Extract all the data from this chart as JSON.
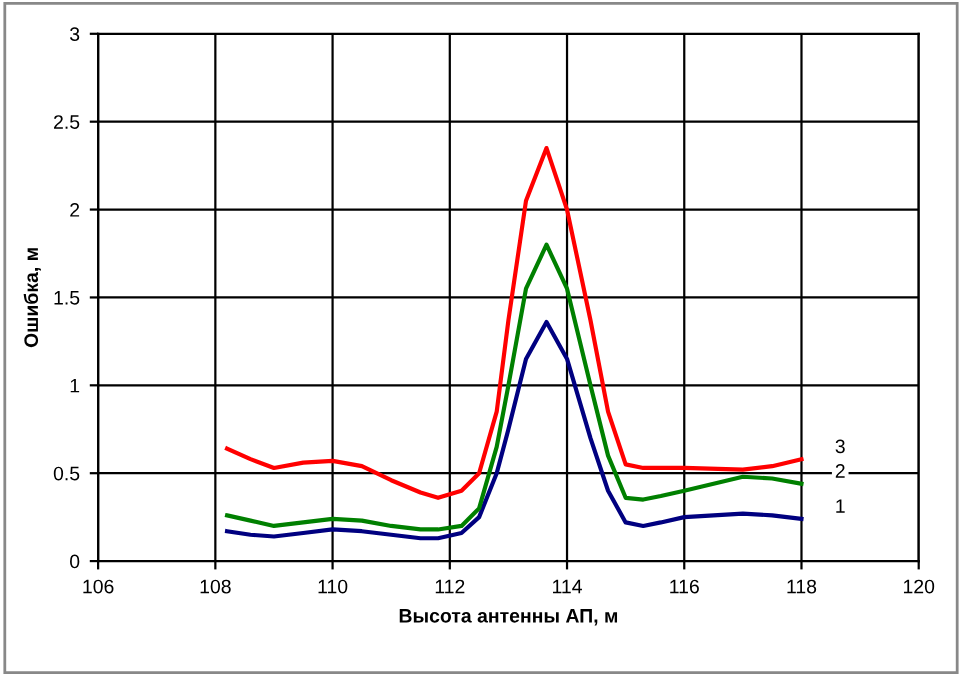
{
  "chart_data": {
    "type": "line",
    "xlabel": "Высота антенны АП, м",
    "ylabel": "Ошибка, м",
    "xlim": [
      106,
      120
    ],
    "xticks": [
      106,
      108,
      110,
      112,
      114,
      116,
      118,
      120
    ],
    "ylim": [
      0,
      3
    ],
    "yticks": [
      0,
      0.5,
      1,
      1.5,
      2,
      2.5,
      3
    ],
    "grid": true,
    "legend": false,
    "marker": "none",
    "line_style": "solid",
    "series": [
      {
        "name": "1",
        "color": "#000080",
        "x": [
          108.2,
          108.6,
          109,
          109.5,
          110,
          110.5,
          111,
          111.5,
          111.8,
          112.2,
          112.5,
          112.8,
          113,
          113.3,
          113.65,
          114,
          114.4,
          114.7,
          115,
          115.3,
          115.6,
          116,
          117,
          117.5,
          118
        ],
        "values": [
          0.17,
          0.15,
          0.14,
          0.16,
          0.18,
          0.17,
          0.15,
          0.13,
          0.13,
          0.16,
          0.25,
          0.5,
          0.75,
          1.15,
          1.36,
          1.15,
          0.7,
          0.4,
          0.22,
          0.2,
          0.22,
          0.25,
          0.27,
          0.26,
          0.24
        ]
      },
      {
        "name": "2",
        "color": "#008000",
        "x": [
          108.2,
          108.6,
          109,
          109.5,
          110,
          110.5,
          111,
          111.5,
          111.8,
          112.2,
          112.5,
          112.8,
          113,
          113.3,
          113.65,
          114,
          114.4,
          114.7,
          115,
          115.3,
          115.6,
          116,
          117,
          117.5,
          118
        ],
        "values": [
          0.26,
          0.23,
          0.2,
          0.22,
          0.24,
          0.23,
          0.2,
          0.18,
          0.18,
          0.2,
          0.3,
          0.65,
          1.0,
          1.55,
          1.8,
          1.55,
          1.0,
          0.6,
          0.36,
          0.35,
          0.37,
          0.4,
          0.48,
          0.47,
          0.44
        ]
      },
      {
        "name": "3",
        "color": "#ff0000",
        "x": [
          108.2,
          108.6,
          109,
          109.5,
          110,
          110.5,
          111,
          111.5,
          111.8,
          112.2,
          112.5,
          112.8,
          113,
          113.3,
          113.65,
          114,
          114.4,
          114.7,
          115,
          115.3,
          115.6,
          116,
          117,
          117.5,
          118
        ],
        "values": [
          0.64,
          0.58,
          0.53,
          0.56,
          0.57,
          0.54,
          0.46,
          0.39,
          0.36,
          0.4,
          0.5,
          0.85,
          1.37,
          2.05,
          2.35,
          2.0,
          1.37,
          0.85,
          0.55,
          0.53,
          0.53,
          0.53,
          0.52,
          0.54,
          0.58
        ]
      }
    ]
  }
}
